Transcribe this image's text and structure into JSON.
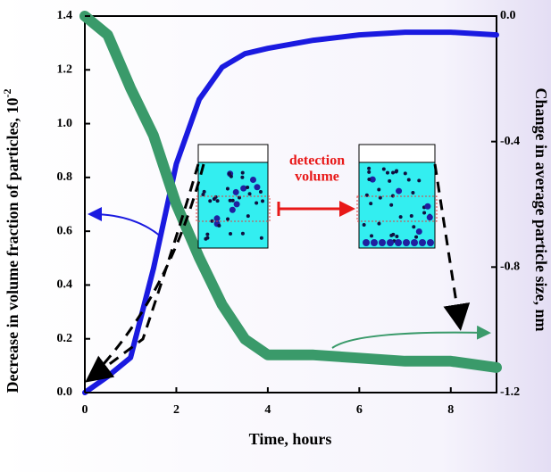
{
  "chart_data": {
    "type": "line",
    "xlabel": "Time, hours",
    "ylabel": "Decrease in volume fraction of particles, 10",
    "ylabel_exponent": "-2",
    "y2label": "Change in  average particle size, nm",
    "annotation": [
      "detection",
      "volume"
    ],
    "xlim": [
      0,
      9
    ],
    "xticks": [
      0,
      2,
      4,
      6,
      8
    ],
    "ylim": [
      0,
      1.4
    ],
    "yticks": [
      {
        "value": 0,
        "label": "0.0"
      },
      {
        "value": 0.2,
        "label": "0.2"
      },
      {
        "value": 0.4,
        "label": "0.4"
      },
      {
        "value": 0.6,
        "label": "0.6"
      },
      {
        "value": 0.8,
        "label": "0.8"
      },
      {
        "value": 1.0,
        "label": "1.0"
      },
      {
        "value": 1.2,
        "label": "1.2"
      },
      {
        "value": 1.4,
        "label": "1.4"
      }
    ],
    "y2lim": [
      -1.2,
      0
    ],
    "y2ticks": [
      {
        "value": 0,
        "label": "0.0"
      },
      {
        "value": -0.4,
        "label": "-0.4"
      },
      {
        "value": -0.8,
        "label": "-0.8"
      },
      {
        "value": -1.2,
        "label": "-1.2"
      }
    ],
    "x": [
      0,
      0.5,
      1,
      1.5,
      2,
      2.5,
      3,
      3.5,
      4,
      5,
      6,
      7,
      8,
      9
    ],
    "series": [
      {
        "color": "#1a1ae0",
        "axis": "y",
        "values": [
          0,
          0.06,
          0.13,
          0.46,
          0.85,
          1.09,
          1.21,
          1.26,
          1.28,
          1.31,
          1.33,
          1.34,
          1.34,
          1.33
        ]
      },
      {
        "color": "#3a9a6a",
        "axis": "y2",
        "values": [
          0,
          -0.06,
          -0.23,
          -0.38,
          -0.6,
          -0.77,
          -0.92,
          -1.03,
          -1.08,
          -1.08,
          -1.09,
          -1.1,
          -1.1,
          -1.12
        ]
      }
    ]
  }
}
